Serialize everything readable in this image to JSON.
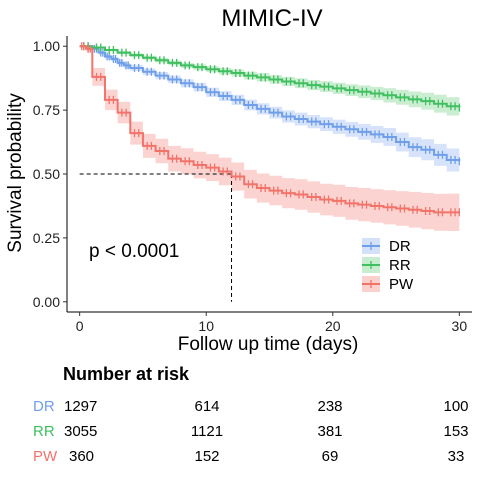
{
  "chart_data": {
    "type": "line",
    "title": "MIMIC-IV",
    "xlabel": "Follow up time (days)",
    "ylabel": "Survival probability",
    "xlim": [
      -1,
      31
    ],
    "ylim": [
      -0.04,
      1.04
    ],
    "x_ticks": [
      0,
      10,
      20,
      30
    ],
    "y_ticks": [
      0.0,
      0.25,
      0.5,
      0.75,
      1.0
    ],
    "y_tick_labels": [
      "0.00",
      "0.25",
      "0.50",
      "0.75",
      "1.00"
    ],
    "x_tick_labels": [
      "0",
      "10",
      "20",
      "30"
    ],
    "grid": false,
    "annotation": "p < 0.0001",
    "median_line": {
      "x": 12,
      "y": 0.5
    },
    "legend": {
      "placement": "right-middle",
      "entries": [
        "DR",
        "RR",
        "PW"
      ]
    },
    "series": [
      {
        "name": "DR",
        "color": "#6f9fe8",
        "band_color": "#c9daf8",
        "x": [
          0,
          1,
          1.5,
          2,
          2.5,
          3,
          3.5,
          4,
          5,
          6,
          7,
          8,
          9,
          10,
          11,
          12,
          13,
          14,
          15,
          16,
          17,
          18,
          19,
          20,
          21,
          22,
          23,
          24,
          25,
          26,
          27,
          28,
          29,
          30
        ],
        "y": [
          1.0,
          0.99,
          0.975,
          0.96,
          0.95,
          0.935,
          0.925,
          0.915,
          0.9,
          0.885,
          0.87,
          0.855,
          0.84,
          0.82,
          0.805,
          0.79,
          0.77,
          0.755,
          0.74,
          0.725,
          0.715,
          0.705,
          0.695,
          0.685,
          0.675,
          0.665,
          0.655,
          0.645,
          0.625,
          0.605,
          0.595,
          0.575,
          0.555,
          0.55
        ],
        "lower": [
          1.0,
          0.985,
          0.968,
          0.952,
          0.941,
          0.925,
          0.914,
          0.903,
          0.887,
          0.871,
          0.855,
          0.839,
          0.823,
          0.802,
          0.786,
          0.77,
          0.749,
          0.733,
          0.717,
          0.701,
          0.69,
          0.679,
          0.668,
          0.657,
          0.646,
          0.634,
          0.622,
          0.61,
          0.588,
          0.566,
          0.554,
          0.532,
          0.51,
          0.505
        ],
        "upper": [
          1.0,
          0.995,
          0.982,
          0.968,
          0.959,
          0.945,
          0.936,
          0.927,
          0.913,
          0.899,
          0.885,
          0.871,
          0.857,
          0.838,
          0.824,
          0.81,
          0.791,
          0.777,
          0.763,
          0.749,
          0.74,
          0.731,
          0.722,
          0.713,
          0.704,
          0.696,
          0.688,
          0.68,
          0.662,
          0.644,
          0.636,
          0.618,
          0.6,
          0.595
        ]
      },
      {
        "name": "RR",
        "color": "#3fbf5f",
        "band_color": "#b9e8c3",
        "x": [
          0,
          1,
          2,
          3,
          4,
          5,
          6,
          7,
          8,
          9,
          10,
          11,
          12,
          13,
          14,
          15,
          16,
          17,
          18,
          19,
          20,
          21,
          22,
          23,
          24,
          25,
          26,
          27,
          28,
          29,
          30
        ],
        "y": [
          1.0,
          0.995,
          0.985,
          0.975,
          0.965,
          0.955,
          0.945,
          0.935,
          0.925,
          0.918,
          0.91,
          0.902,
          0.895,
          0.885,
          0.878,
          0.87,
          0.862,
          0.855,
          0.848,
          0.842,
          0.835,
          0.828,
          0.822,
          0.815,
          0.808,
          0.8,
          0.792,
          0.785,
          0.775,
          0.765,
          0.76
        ],
        "lower": [
          1.0,
          0.992,
          0.98,
          0.969,
          0.958,
          0.947,
          0.936,
          0.926,
          0.915,
          0.907,
          0.898,
          0.889,
          0.881,
          0.87,
          0.862,
          0.853,
          0.844,
          0.836,
          0.828,
          0.821,
          0.813,
          0.805,
          0.797,
          0.789,
          0.78,
          0.771,
          0.761,
          0.752,
          0.74,
          0.729,
          0.722
        ],
        "upper": [
          1.0,
          0.998,
          0.99,
          0.981,
          0.972,
          0.963,
          0.954,
          0.944,
          0.935,
          0.929,
          0.922,
          0.915,
          0.909,
          0.9,
          0.894,
          0.887,
          0.88,
          0.874,
          0.868,
          0.863,
          0.857,
          0.851,
          0.847,
          0.841,
          0.836,
          0.829,
          0.823,
          0.818,
          0.81,
          0.801,
          0.798
        ]
      },
      {
        "name": "PW",
        "color": "#f2736a",
        "band_color": "#f9c5c1",
        "x": [
          0,
          0.5,
          1,
          2,
          3,
          4,
          5,
          6,
          7,
          8,
          9,
          10,
          11,
          12,
          13,
          14,
          15,
          16,
          17,
          18,
          19,
          20,
          21,
          22,
          23,
          24,
          25,
          26,
          27,
          28,
          29,
          30
        ],
        "y": [
          1.0,
          0.99,
          0.88,
          0.79,
          0.74,
          0.66,
          0.61,
          0.59,
          0.56,
          0.55,
          0.535,
          0.525,
          0.51,
          0.49,
          0.46,
          0.445,
          0.435,
          0.425,
          0.42,
          0.41,
          0.4,
          0.395,
          0.385,
          0.38,
          0.375,
          0.37,
          0.365,
          0.36,
          0.355,
          0.35,
          0.35,
          0.35
        ],
        "lower": [
          1.0,
          0.98,
          0.845,
          0.75,
          0.698,
          0.615,
          0.563,
          0.542,
          0.51,
          0.499,
          0.483,
          0.472,
          0.456,
          0.435,
          0.404,
          0.388,
          0.377,
          0.366,
          0.36,
          0.349,
          0.338,
          0.332,
          0.321,
          0.315,
          0.309,
          0.303,
          0.297,
          0.29,
          0.284,
          0.278,
          0.277,
          0.276
        ],
        "upper": [
          1.0,
          1.0,
          0.915,
          0.83,
          0.782,
          0.705,
          0.657,
          0.638,
          0.61,
          0.601,
          0.587,
          0.578,
          0.564,
          0.545,
          0.516,
          0.502,
          0.493,
          0.484,
          0.48,
          0.471,
          0.462,
          0.458,
          0.449,
          0.445,
          0.441,
          0.437,
          0.433,
          0.43,
          0.426,
          0.422,
          0.423,
          0.424
        ]
      }
    ]
  },
  "risk_table": {
    "title": "Number at risk",
    "times": [
      0,
      10,
      20,
      30
    ],
    "rows": [
      {
        "label": "DR",
        "color": "#6f9fe8",
        "values": [
          "1297",
          "614",
          "238",
          "100"
        ]
      },
      {
        "label": "RR",
        "color": "#3fbf5f",
        "values": [
          "3055",
          "1121",
          "381",
          "153"
        ]
      },
      {
        "label": "PW",
        "color": "#f2736a",
        "values": [
          "360",
          "152",
          "69",
          "33"
        ]
      }
    ]
  }
}
